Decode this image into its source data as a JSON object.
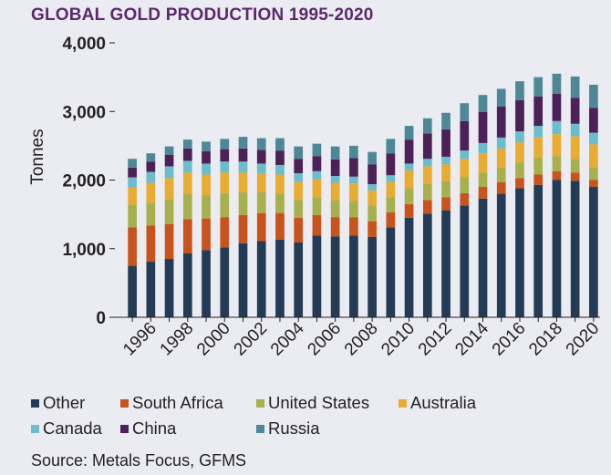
{
  "chart_data": {
    "type": "bar",
    "stacked": true,
    "title": "GLOBAL GOLD PRODUCTION 1995-2020",
    "ylabel": "Tonnes",
    "xlabel": "",
    "ylim": [
      0,
      4000
    ],
    "yticks": [
      0,
      1000,
      2000,
      3000,
      4000
    ],
    "ytick_labels": [
      "0",
      "1,000",
      "2,000",
      "3,000",
      "4,000"
    ],
    "grid": false,
    "legend_position": "bottom",
    "categories": [
      1995,
      1996,
      1997,
      1998,
      1999,
      2000,
      2001,
      2002,
      2003,
      2004,
      2005,
      2006,
      2007,
      2008,
      2009,
      2010,
      2011,
      2012,
      2013,
      2014,
      2015,
      2016,
      2017,
      2018,
      2019,
      2020
    ],
    "xtick_labels": [
      "1996",
      "1998",
      "2000",
      "2002",
      "2004",
      "2006",
      "2008",
      "2010",
      "2012",
      "2014",
      "2016",
      "2018",
      "2020"
    ],
    "series": [
      {
        "name": "Other",
        "color": "#243b55",
        "values": [
          750,
          810,
          850,
          930,
          980,
          1020,
          1080,
          1110,
          1130,
          1090,
          1190,
          1180,
          1190,
          1170,
          1310,
          1450,
          1510,
          1560,
          1630,
          1730,
          1800,
          1880,
          1930,
          2000,
          1990,
          1900
        ]
      },
      {
        "name": "South Africa",
        "color": "#c9531c",
        "values": [
          560,
          530,
          510,
          500,
          460,
          440,
          410,
          410,
          390,
          360,
          300,
          280,
          270,
          230,
          220,
          200,
          200,
          190,
          180,
          170,
          170,
          150,
          150,
          130,
          120,
          100
        ]
      },
      {
        "name": "United States",
        "color": "#a8b04d",
        "values": [
          330,
          330,
          360,
          370,
          340,
          350,
          330,
          300,
          280,
          260,
          260,
          250,
          240,
          230,
          220,
          230,
          230,
          230,
          230,
          210,
          210,
          230,
          240,
          220,
          200,
          190
        ]
      },
      {
        "name": "Australia",
        "color": "#e8ac32",
        "values": [
          250,
          290,
          310,
          310,
          300,
          300,
          290,
          270,
          280,
          260,
          260,
          250,
          250,
          220,
          220,
          260,
          260,
          250,
          270,
          280,
          280,
          290,
          300,
          320,
          330,
          330
        ]
      },
      {
        "name": "Canada",
        "color": "#6bbccc",
        "values": [
          150,
          160,
          170,
          170,
          160,
          160,
          160,
          150,
          140,
          130,
          120,
          100,
          100,
          90,
          100,
          100,
          110,
          110,
          120,
          150,
          160,
          160,
          170,
          190,
          180,
          170
        ]
      },
      {
        "name": "China",
        "color": "#4b2158",
        "values": [
          140,
          150,
          170,
          180,
          180,
          180,
          190,
          200,
          210,
          210,
          220,
          240,
          270,
          290,
          320,
          350,
          370,
          400,
          430,
          450,
          450,
          455,
          430,
          400,
          380,
          360
        ]
      },
      {
        "name": "Russia",
        "color": "#4e8896",
        "values": [
          130,
          120,
          120,
          130,
          140,
          150,
          170,
          170,
          180,
          180,
          180,
          190,
          180,
          180,
          210,
          200,
          220,
          240,
          260,
          250,
          260,
          275,
          280,
          290,
          310,
          340
        ]
      }
    ],
    "source": "Source: Metals Focus, GFMS"
  }
}
